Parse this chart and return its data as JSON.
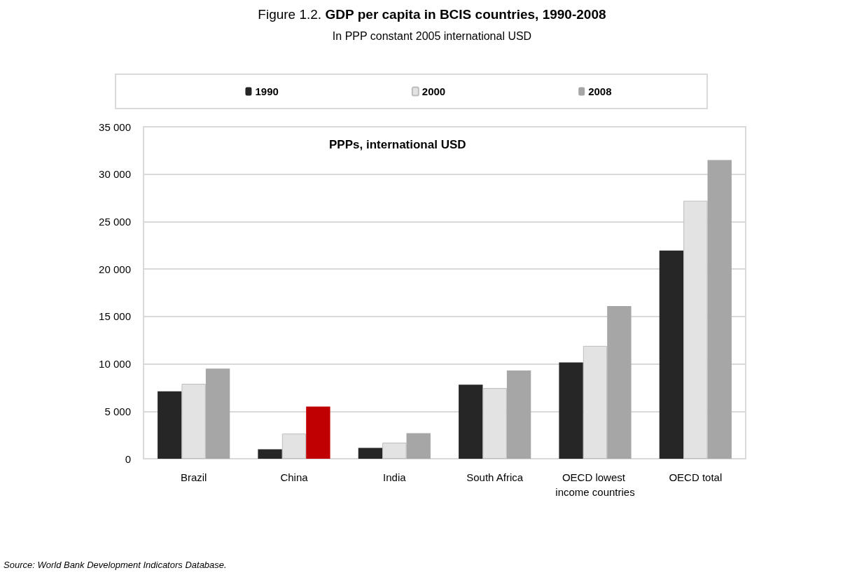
{
  "chart_data": {
    "type": "bar",
    "title": "Figure 1.2. GDP per capita in BCIS countries, 1990-2008",
    "subtitle": "In PPP constant 2005 international USD",
    "categories": [
      "Brazil",
      "China",
      "India",
      "South Africa",
      "OECD lowest income countries",
      "OECD total"
    ],
    "series": [
      {
        "name": "1990",
        "color": "#262626",
        "values": [
          7100,
          1000,
          1150,
          7800,
          10150,
          21950
        ]
      },
      {
        "name": "2000",
        "color": "#e3e3e3",
        "values": [
          7900,
          2650,
          1700,
          7450,
          11900,
          27200
        ]
      },
      {
        "name": "2008",
        "color": "#a6a6a6",
        "colors": [
          "#a6a6a6",
          "#c00000",
          "#a6a6a6",
          "#a6a6a6",
          "#a6a6a6",
          "#a6a6a6"
        ],
        "values": [
          9500,
          5500,
          2700,
          9300,
          16100,
          31500
        ]
      }
    ],
    "ylim": [
      0,
      35000
    ],
    "yticks": [
      {
        "value": 0,
        "label": "0"
      },
      {
        "value": 5000,
        "label": "5 000"
      },
      {
        "value": 10000,
        "label": "10 000"
      },
      {
        "value": 15000,
        "label": "15 000"
      },
      {
        "value": 20000,
        "label": "20 000"
      },
      {
        "value": 25000,
        "label": "25 000"
      },
      {
        "value": 30000,
        "label": "30 000"
      },
      {
        "value": 35000,
        "label": "35 000"
      }
    ],
    "grid": "y",
    "legend": "top",
    "annotations": [
      "PPPs, international USD",
      "Source: World Bank Development Indicators Database."
    ]
  }
}
